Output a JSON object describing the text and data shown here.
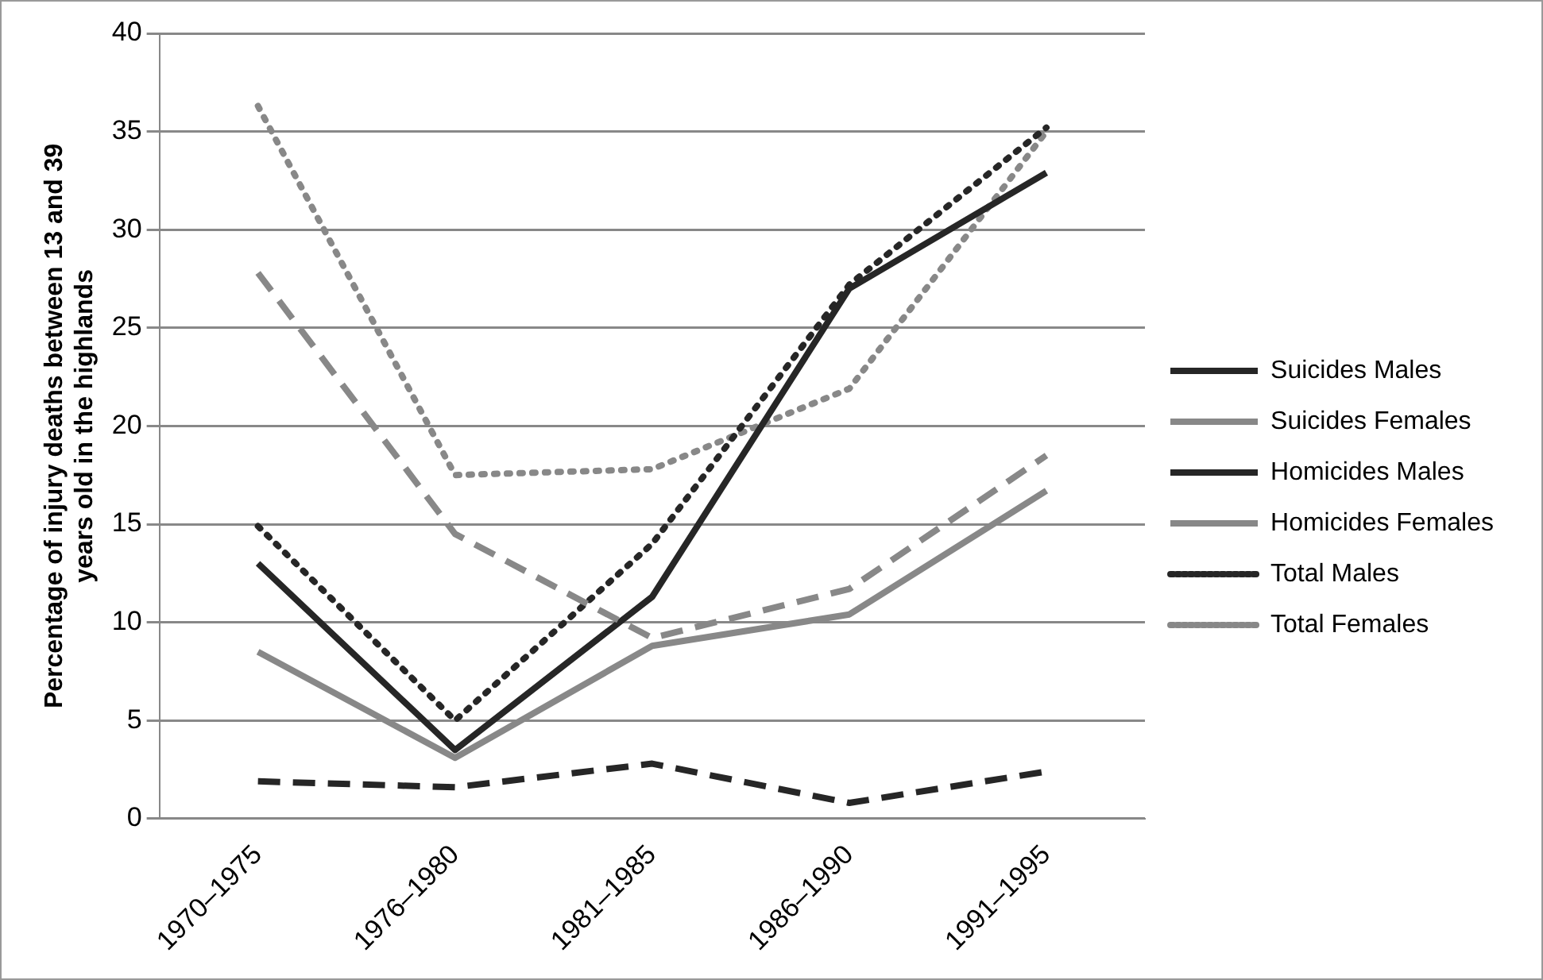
{
  "chart_data": {
    "type": "line",
    "ylabel": "Percentage of injury deaths between 13 and 39 years old in the highlands",
    "categories": [
      "1970–1975",
      "1976–1980",
      "1981–1985",
      "1986–1990",
      "1991–1995"
    ],
    "ylim": [
      0,
      40
    ],
    "yticks": [
      0,
      5,
      10,
      15,
      20,
      25,
      30,
      35,
      40
    ],
    "grid": "y",
    "legend": "right",
    "marker": "none",
    "series": [
      {
        "name": "Suicides Males",
        "color": "#262626",
        "line_style": "dashed",
        "values": [
          1.9,
          1.6,
          2.8,
          0.8,
          2.4
        ]
      },
      {
        "name": "Suicides Females",
        "color": "#888888",
        "line_style": "dashed",
        "values": [
          27.8,
          14.5,
          9.2,
          11.7,
          18.5
        ]
      },
      {
        "name": "Homicides Males",
        "color": "#262626",
        "line_style": "solid",
        "values": [
          13.0,
          3.5,
          11.3,
          27.0,
          32.9
        ]
      },
      {
        "name": "Homicides Females",
        "color": "#888888",
        "line_style": "solid",
        "values": [
          8.5,
          3.1,
          8.8,
          10.4,
          16.7
        ]
      },
      {
        "name": "Total Males",
        "color": "#262626",
        "line_style": "dotted",
        "values": [
          14.9,
          5.0,
          14.0,
          27.2,
          35.2
        ]
      },
      {
        "name": "Total Females",
        "color": "#888888",
        "line_style": "dotted",
        "values": [
          36.3,
          17.5,
          17.8,
          21.9,
          35.0
        ]
      }
    ]
  }
}
